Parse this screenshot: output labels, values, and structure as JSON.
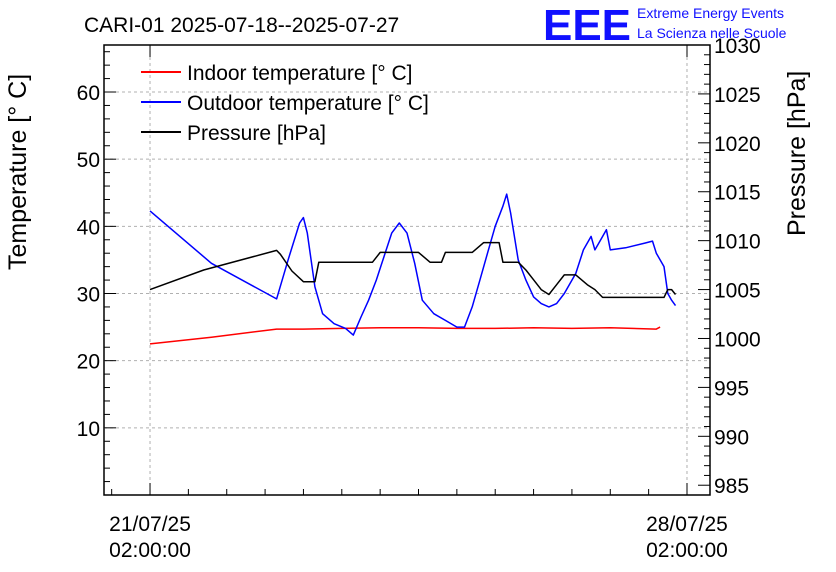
{
  "chart_data": {
    "type": "line",
    "title": "CARI-01 2025-07-18--2025-07-27",
    "brand": {
      "logo": "EEE",
      "line1": "Extreme Energy Events",
      "line2": "La Scienza nelle Scuole",
      "color": "#1010ff"
    },
    "x_axis": {
      "label": "",
      "ticks": [
        {
          "day": 0,
          "date": "21/07/25",
          "time": "02:00:00"
        },
        {
          "day": 7,
          "date": "28/07/25",
          "time": "02:00:00"
        }
      ],
      "xlim": [
        -0.6,
        7.3
      ],
      "unit": "days since 21/07/25 02:00:00"
    },
    "y_axis_left": {
      "label": "Temperature [° C]",
      "ylim": [
        0,
        67
      ],
      "ticks": [
        10,
        20,
        30,
        40,
        50,
        60
      ]
    },
    "y_axis_right": {
      "label": "Pressure [hPa]",
      "ylim": [
        984,
        1030
      ],
      "ticks": [
        985,
        990,
        995,
        1000,
        1005,
        1010,
        1015,
        1020,
        1025,
        1030
      ]
    },
    "grid": true,
    "legend": {
      "position": "top-left",
      "entries": [
        "Indoor temperature [° C]",
        "Outdoor temperature [° C]",
        "Pressure [hPa]"
      ]
    },
    "series": [
      {
        "name": "Indoor temperature [° C]",
        "axis": "left",
        "color": "#ff0000",
        "points": [
          [
            0.0,
            22.5
          ],
          [
            0.8,
            23.5
          ],
          [
            1.65,
            24.7
          ],
          [
            2.0,
            24.7
          ],
          [
            2.5,
            24.8
          ],
          [
            3.0,
            24.9
          ],
          [
            3.5,
            24.9
          ],
          [
            4.0,
            24.8
          ],
          [
            4.5,
            24.8
          ],
          [
            5.0,
            24.9
          ],
          [
            5.5,
            24.8
          ],
          [
            6.0,
            24.9
          ],
          [
            6.6,
            24.7
          ],
          [
            6.65,
            25.0
          ]
        ]
      },
      {
        "name": "Outdoor temperature [° C]",
        "axis": "left",
        "color": "#0000ff",
        "points": [
          [
            0.0,
            42.3
          ],
          [
            0.8,
            34.5
          ],
          [
            1.65,
            29.2
          ],
          [
            1.8,
            35.0
          ],
          [
            1.95,
            40.5
          ],
          [
            2.0,
            41.3
          ],
          [
            2.05,
            39.0
          ],
          [
            2.15,
            31.0
          ],
          [
            2.25,
            27.0
          ],
          [
            2.4,
            25.5
          ],
          [
            2.55,
            24.8
          ],
          [
            2.65,
            23.8
          ],
          [
            2.75,
            26.5
          ],
          [
            2.85,
            29.0
          ],
          [
            2.95,
            32.0
          ],
          [
            3.05,
            35.5
          ],
          [
            3.15,
            39.0
          ],
          [
            3.25,
            40.5
          ],
          [
            3.35,
            39.0
          ],
          [
            3.45,
            34.5
          ],
          [
            3.55,
            29.0
          ],
          [
            3.7,
            27.0
          ],
          [
            3.85,
            26.0
          ],
          [
            4.0,
            25.0
          ],
          [
            4.1,
            25.0
          ],
          [
            4.2,
            28.0
          ],
          [
            4.3,
            32.0
          ],
          [
            4.4,
            36.0
          ],
          [
            4.5,
            40.0
          ],
          [
            4.6,
            43.0
          ],
          [
            4.65,
            44.8
          ],
          [
            4.7,
            42.0
          ],
          [
            4.8,
            35.0
          ],
          [
            4.9,
            32.0
          ],
          [
            5.0,
            29.5
          ],
          [
            5.1,
            28.5
          ],
          [
            5.2,
            28.0
          ],
          [
            5.3,
            28.5
          ],
          [
            5.4,
            30.0
          ],
          [
            5.55,
            33.0
          ],
          [
            5.65,
            36.5
          ],
          [
            5.75,
            38.5
          ],
          [
            5.8,
            36.5
          ],
          [
            5.85,
            37.5
          ],
          [
            5.95,
            39.5
          ],
          [
            6.0,
            36.5
          ],
          [
            6.2,
            36.8
          ],
          [
            6.45,
            37.5
          ],
          [
            6.55,
            37.8
          ],
          [
            6.6,
            36.0
          ],
          [
            6.7,
            34.0
          ],
          [
            6.75,
            30.0
          ],
          [
            6.8,
            29.0
          ],
          [
            6.85,
            28.2
          ]
        ]
      },
      {
        "name": "Pressure [hPa]",
        "axis": "right",
        "color": "#000000",
        "points": [
          [
            0.0,
            1005.0
          ],
          [
            0.7,
            1007.0
          ],
          [
            1.65,
            1009.0
          ],
          [
            1.7,
            1008.6
          ],
          [
            1.85,
            1006.9
          ],
          [
            2.0,
            1005.8
          ],
          [
            2.15,
            1005.8
          ],
          [
            2.2,
            1007.8
          ],
          [
            2.5,
            1007.8
          ],
          [
            2.9,
            1007.8
          ],
          [
            3.0,
            1008.8
          ],
          [
            3.5,
            1008.8
          ],
          [
            3.65,
            1007.8
          ],
          [
            3.8,
            1007.8
          ],
          [
            3.85,
            1008.8
          ],
          [
            4.2,
            1008.8
          ],
          [
            4.35,
            1009.8
          ],
          [
            4.55,
            1009.8
          ],
          [
            4.6,
            1007.8
          ],
          [
            4.8,
            1007.8
          ],
          [
            4.9,
            1007.0
          ],
          [
            5.0,
            1006.0
          ],
          [
            5.1,
            1005.0
          ],
          [
            5.2,
            1004.5
          ],
          [
            5.3,
            1005.5
          ],
          [
            5.4,
            1006.5
          ],
          [
            5.55,
            1006.5
          ],
          [
            5.7,
            1005.5
          ],
          [
            5.8,
            1005.0
          ],
          [
            5.9,
            1004.2
          ],
          [
            6.0,
            1004.2
          ],
          [
            6.5,
            1004.2
          ],
          [
            6.7,
            1004.2
          ],
          [
            6.75,
            1005.0
          ],
          [
            6.8,
            1005.0
          ],
          [
            6.85,
            1004.5
          ]
        ]
      }
    ]
  }
}
